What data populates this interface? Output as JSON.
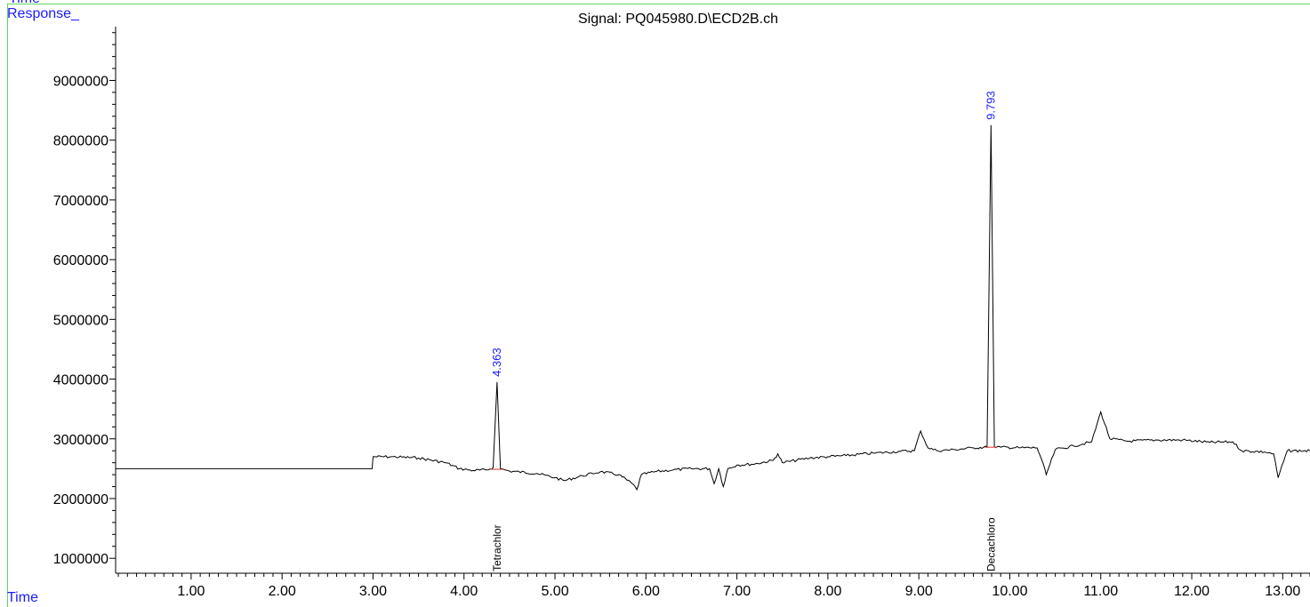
{
  "chart_data": {
    "type": "line",
    "title": "Signal: PQ045980.D\\ECD2B.ch",
    "top_label": "Time",
    "ylabel": "Response_",
    "xlabel": "Time",
    "xlim": [
      0.17,
      13.3
    ],
    "ylim": [
      750000,
      9900000
    ],
    "y_ticks": [
      1000000,
      2000000,
      3000000,
      4000000,
      5000000,
      6000000,
      7000000,
      8000000,
      9000000
    ],
    "y_tick_labels": [
      "1000000",
      "2000000",
      "3000000",
      "4000000",
      "5000000",
      "6000000",
      "7000000",
      "8000000",
      "9000000"
    ],
    "x_ticks": [
      1,
      2,
      3,
      4,
      5,
      6,
      7,
      8,
      9,
      10,
      11,
      12,
      13
    ],
    "x_tick_labels": [
      "1.00",
      "2.00",
      "3.00",
      "4.00",
      "5.00",
      "6.00",
      "7.00",
      "8.00",
      "9.00",
      "10.00",
      "11.00",
      "12.00",
      "13.00"
    ],
    "peaks": [
      {
        "rt": 4.363,
        "height": 3950000,
        "label": "4.363",
        "compound": "Tetrachlor"
      },
      {
        "rt": 9.793,
        "height": 8250000,
        "label": "9.793",
        "compound": "Decachloro"
      }
    ],
    "trace": {
      "x": [
        0.17,
        2.99,
        3.0,
        3.2,
        3.5,
        3.8,
        3.95,
        4.1,
        4.25,
        4.32,
        4.363,
        4.4,
        4.5,
        4.8,
        5.0,
        5.1,
        5.3,
        5.5,
        5.7,
        5.85,
        5.9,
        5.95,
        6.1,
        6.3,
        6.5,
        6.7,
        6.75,
        6.8,
        6.85,
        6.9,
        7.0,
        7.2,
        7.4,
        7.45,
        7.5,
        7.8,
        8.0,
        8.2,
        8.5,
        8.8,
        8.95,
        9.02,
        9.1,
        9.2,
        9.4,
        9.6,
        9.75,
        9.793,
        9.83,
        9.9,
        10.1,
        10.3,
        10.35,
        10.4,
        10.5,
        10.7,
        10.9,
        11.0,
        11.1,
        11.3,
        11.6,
        11.9,
        12.2,
        12.45,
        12.55,
        12.8,
        12.9,
        12.95,
        13.05,
        13.3
      ],
      "y": [
        2500000,
        2500000,
        2700000,
        2700000,
        2680000,
        2600000,
        2500000,
        2470000,
        2480000,
        2520000,
        3950000,
        2500000,
        2460000,
        2420000,
        2350000,
        2300000,
        2380000,
        2450000,
        2400000,
        2250000,
        2150000,
        2400000,
        2450000,
        2480000,
        2500000,
        2500000,
        2250000,
        2500000,
        2200000,
        2500000,
        2560000,
        2580000,
        2640000,
        2750000,
        2600000,
        2680000,
        2700000,
        2720000,
        2760000,
        2790000,
        2800000,
        3130000,
        2850000,
        2800000,
        2820000,
        2850000,
        2860000,
        8250000,
        2870000,
        2860000,
        2850000,
        2850000,
        2650000,
        2400000,
        2820000,
        2880000,
        2950000,
        3450000,
        3000000,
        2960000,
        2980000,
        2980000,
        2940000,
        2950000,
        2800000,
        2780000,
        2750000,
        2350000,
        2800000,
        2800000
      ]
    }
  }
}
